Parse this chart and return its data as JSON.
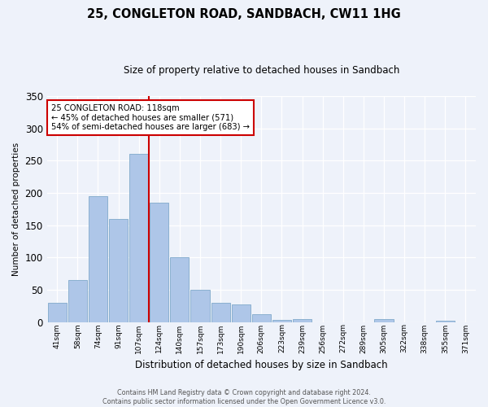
{
  "title": "25, CONGLETON ROAD, SANDBACH, CW11 1HG",
  "subtitle": "Size of property relative to detached houses in Sandbach",
  "xlabel": "Distribution of detached houses by size in Sandbach",
  "ylabel": "Number of detached properties",
  "categories": [
    "41sqm",
    "58sqm",
    "74sqm",
    "91sqm",
    "107sqm",
    "124sqm",
    "140sqm",
    "157sqm",
    "173sqm",
    "190sqm",
    "206sqm",
    "223sqm",
    "239sqm",
    "256sqm",
    "272sqm",
    "289sqm",
    "305sqm",
    "322sqm",
    "338sqm",
    "355sqm",
    "371sqm"
  ],
  "values": [
    30,
    65,
    195,
    160,
    260,
    185,
    100,
    50,
    30,
    28,
    12,
    4,
    5,
    0,
    0,
    0,
    5,
    0,
    0,
    3,
    0
  ],
  "bar_color": "#aec6e8",
  "bar_edge_color": "#8ab0d0",
  "background_color": "#eef2fa",
  "grid_color": "#ffffff",
  "annotation_text_line1": "25 CONGLETON ROAD: 118sqm",
  "annotation_text_line2": "← 45% of detached houses are smaller (571)",
  "annotation_text_line3": "54% of semi-detached houses are larger (683) →",
  "annotation_box_color": "#ffffff",
  "annotation_border_color": "#cc0000",
  "vline_color": "#cc0000",
  "footer_line1": "Contains HM Land Registry data © Crown copyright and database right 2024.",
  "footer_line2": "Contains public sector information licensed under the Open Government Licence v3.0.",
  "ylim": [
    0,
    350
  ],
  "yticks": [
    0,
    50,
    100,
    150,
    200,
    250,
    300,
    350
  ]
}
